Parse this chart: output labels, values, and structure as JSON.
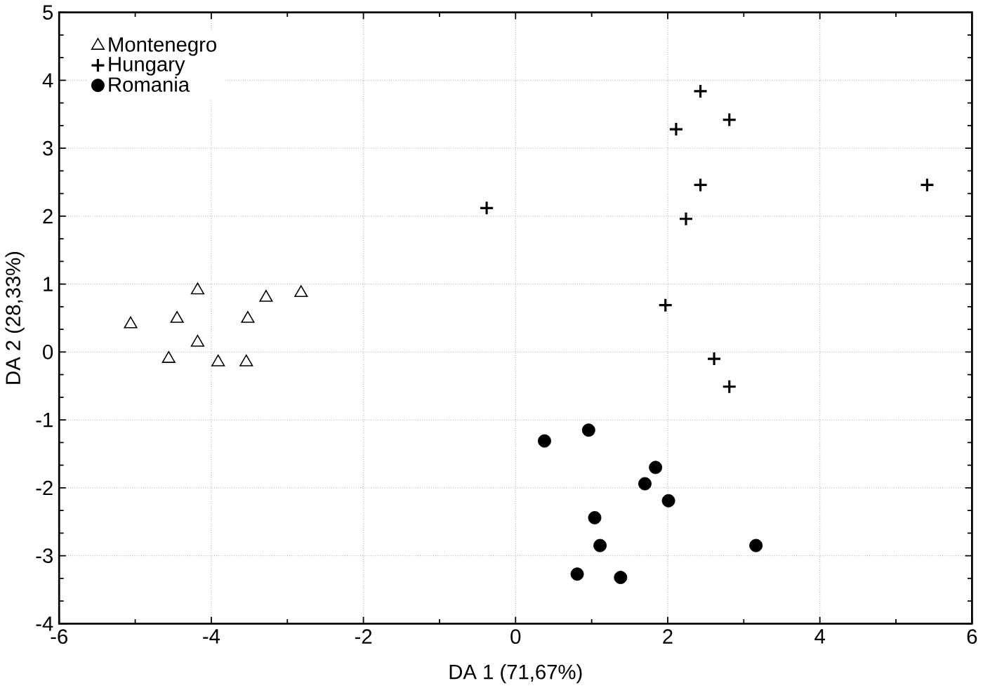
{
  "chart_data": {
    "type": "scatter",
    "xlabel": "DA 1 (71,67%)",
    "ylabel": "DA 2 (28,33%)",
    "xlim": [
      -6,
      6
    ],
    "ylim": [
      -4,
      5
    ],
    "xticks": [
      -6,
      -4,
      -2,
      0,
      2,
      4,
      6
    ],
    "yticks": [
      -4,
      -3,
      -2,
      -1,
      0,
      1,
      2,
      3,
      4,
      5
    ],
    "grid": true,
    "legend": "top left",
    "series": [
      {
        "name": "Montenegro",
        "color": "#000000",
        "marker": "triangle",
        "x": [
          -5.06,
          -4.18,
          -4.45,
          -4.18,
          -4.56,
          -3.91,
          -3.54,
          -3.52,
          -3.28,
          -2.82
        ],
        "values": [
          0.41,
          0.91,
          0.49,
          0.14,
          -0.1,
          -0.15,
          -0.15,
          0.49,
          0.8,
          0.87
        ]
      },
      {
        "name": "Hungary",
        "color": "#000000",
        "marker": "cross",
        "x": [
          2.43,
          2.11,
          2.81,
          2.43,
          5.41,
          -0.38,
          2.24,
          1.97,
          2.61,
          2.81
        ],
        "values": [
          3.84,
          3.28,
          3.42,
          2.46,
          2.46,
          2.12,
          1.96,
          0.69,
          -0.1,
          -0.51
        ]
      },
      {
        "name": "Romania",
        "color": "#000000",
        "marker": "circle",
        "x": [
          0.38,
          0.96,
          1.84,
          1.7,
          2.01,
          1.04,
          1.11,
          3.16,
          0.81,
          1.38
        ],
        "values": [
          -1.31,
          -1.15,
          -1.7,
          -1.94,
          -2.19,
          -2.44,
          -2.85,
          -2.85,
          -3.27,
          -3.32
        ]
      }
    ]
  }
}
